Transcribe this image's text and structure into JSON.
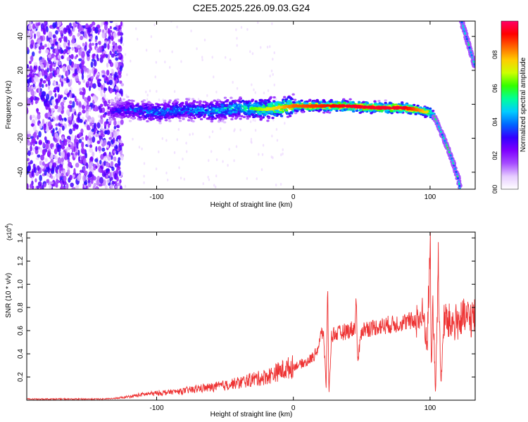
{
  "figure_title": "C2E5.2025.226.09.03.G24",
  "chart_data": [
    {
      "type": "heatmap",
      "title": "C2E5.2025.226.09.03.G24",
      "xlabel": "Height of straight line (km)",
      "ylabel": "Frequency (Hz)",
      "xlim": [
        -195,
        133
      ],
      "ylim": [
        -50,
        49
      ],
      "x_ticks": [
        -100,
        0,
        100
      ],
      "x_tick_labels": [
        "-100",
        "0",
        "100"
      ],
      "y_ticks": [
        -40,
        -20,
        0,
        20,
        40
      ],
      "y_tick_labels": [
        "-40",
        "-20",
        "0",
        "20",
        "40"
      ],
      "colorbar": {
        "label": "Normalized spectral amplitude",
        "range": [
          0,
          1
        ],
        "ticks": [
          0.0,
          0.2,
          0.4,
          0.6,
          0.8
        ],
        "tick_labels": [
          "0.0",
          "0.2",
          "0.4",
          "0.6",
          "0.8"
        ],
        "colormap": [
          "#ffffff",
          "#e6ccff",
          "#a64dff",
          "#7f00ff",
          "#3300ff",
          "#0066ff",
          "#00ccff",
          "#00ff99",
          "#33ff00",
          "#ccff00",
          "#ffcc00",
          "#ff6600",
          "#ff0000",
          "#ff0066"
        ]
      },
      "grid": false,
      "features": {
        "noise_region_x": [
          -195,
          -125
        ],
        "ridge": {
          "x": [
            -135,
            -120,
            -100,
            -80,
            -60,
            -40,
            -20,
            0,
            20,
            40,
            60,
            80,
            90,
            100,
            103
          ],
          "y": [
            -4,
            -3,
            -5,
            -3,
            -4,
            -2,
            -3,
            -1,
            -1,
            -1,
            -2,
            -2,
            -3,
            -5,
            -7
          ],
          "peak_amplitude": [
            0.3,
            0.4,
            0.45,
            0.45,
            0.5,
            0.55,
            0.7,
            0.85,
            0.9,
            0.95,
            0.95,
            0.95,
            0.85,
            0.7,
            0.6
          ]
        },
        "fall_branch": {
          "x": [
            103,
            110,
            115,
            120,
            122
          ],
          "y": [
            -7,
            -20,
            -30,
            -42,
            -50
          ]
        },
        "upper_branch": {
          "x": [
            123,
            133
          ],
          "y": [
            49,
            22
          ]
        }
      }
    },
    {
      "type": "line",
      "xlabel": "Height of straight line (km)",
      "ylabel": "SNR (10 * v/v)",
      "y_multiplier": "(x10",
      "y_multiplier_exp": "4",
      "y_multiplier_close": ")",
      "xlim": [
        -195,
        133
      ],
      "ylim": [
        0,
        1.45
      ],
      "x_ticks": [
        -100,
        0,
        100
      ],
      "x_tick_labels": [
        "-100",
        "0",
        "100"
      ],
      "y_ticks": [
        0.2,
        0.4,
        0.6,
        0.8,
        1.0,
        1.2,
        1.4
      ],
      "y_tick_labels": [
        "0.2",
        "0.4",
        "0.6",
        "0.8",
        "1.0",
        "1.2",
        "1.4"
      ],
      "color": "#ee3333",
      "grid": false,
      "series": [
        {
          "x": [
            -195,
            -180,
            -160,
            -140,
            -130,
            -120,
            -110,
            -100,
            -90,
            -80,
            -70,
            -60,
            -50,
            -40,
            -30,
            -20,
            -10,
            0,
            10,
            15,
            18,
            20,
            22,
            24,
            25,
            26,
            28,
            30,
            35,
            40,
            45,
            46,
            47,
            50,
            60,
            70,
            80,
            90,
            95,
            98,
            100,
            101,
            102,
            104,
            106,
            108,
            110,
            115,
            120,
            125,
            130,
            133
          ],
          "y": [
            0.01,
            0.01,
            0.01,
            0.01,
            0.015,
            0.03,
            0.05,
            0.06,
            0.07,
            0.08,
            0.1,
            0.11,
            0.13,
            0.15,
            0.18,
            0.2,
            0.25,
            0.29,
            0.33,
            0.38,
            0.45,
            0.55,
            0.6,
            0.1,
            1.02,
            0.05,
            0.56,
            0.57,
            0.58,
            0.6,
            0.62,
            0.9,
            0.32,
            0.61,
            0.63,
            0.65,
            0.67,
            0.69,
            0.72,
            0.5,
            1.38,
            0.2,
            0.88,
            0.05,
            1.2,
            0.1,
            0.7,
            0.66,
            0.68,
            0.7,
            0.71,
            0.72
          ]
        }
      ]
    }
  ]
}
